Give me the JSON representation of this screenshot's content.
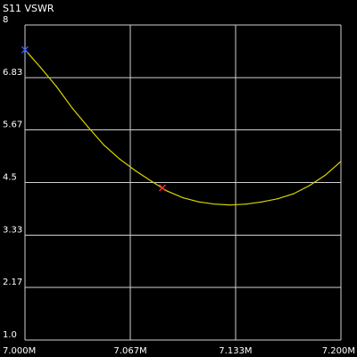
{
  "chart_data": {
    "type": "line",
    "title": "S11 VSWR",
    "xlabel": "",
    "ylabel": "",
    "xlim": [
      7.0,
      7.2
    ],
    "ylim": [
      1.0,
      8.0
    ],
    "x_ticks": [
      {
        "value": 7.0,
        "label": "7.000M"
      },
      {
        "value": 7.0667,
        "label": "7.067M"
      },
      {
        "value": 7.1333,
        "label": "7.133M"
      },
      {
        "value": 7.2,
        "label": "7.200M"
      }
    ],
    "y_ticks": [
      {
        "value": 8.0,
        "label": "8"
      },
      {
        "value": 6.83,
        "label": "6.83"
      },
      {
        "value": 5.67,
        "label": "5.67"
      },
      {
        "value": 4.5,
        "label": "4.5"
      },
      {
        "value": 3.33,
        "label": "3.33"
      },
      {
        "value": 2.17,
        "label": "2.17"
      },
      {
        "value": 1.0,
        "label": "1.0"
      }
    ],
    "grid": true,
    "series": [
      {
        "color": "#d8d800",
        "x": [
          7.0,
          7.01,
          7.02,
          7.03,
          7.04,
          7.05,
          7.06,
          7.07,
          7.08,
          7.09,
          7.1,
          7.11,
          7.12,
          7.13,
          7.14,
          7.15,
          7.16,
          7.17,
          7.18,
          7.19,
          7.2
        ],
        "y": [
          7.45,
          7.05,
          6.63,
          6.15,
          5.73,
          5.33,
          5.02,
          4.76,
          4.53,
          4.31,
          4.16,
          4.07,
          4.02,
          4.0,
          4.02,
          4.07,
          4.14,
          4.25,
          4.43,
          4.66,
          4.97
        ]
      }
    ],
    "markers": [
      {
        "x": 7.0,
        "y": 7.45,
        "color": "#3a5bff",
        "symbol": "x"
      },
      {
        "x": 7.087,
        "y": 4.38,
        "color": "#ff3030",
        "symbol": "x"
      }
    ]
  }
}
